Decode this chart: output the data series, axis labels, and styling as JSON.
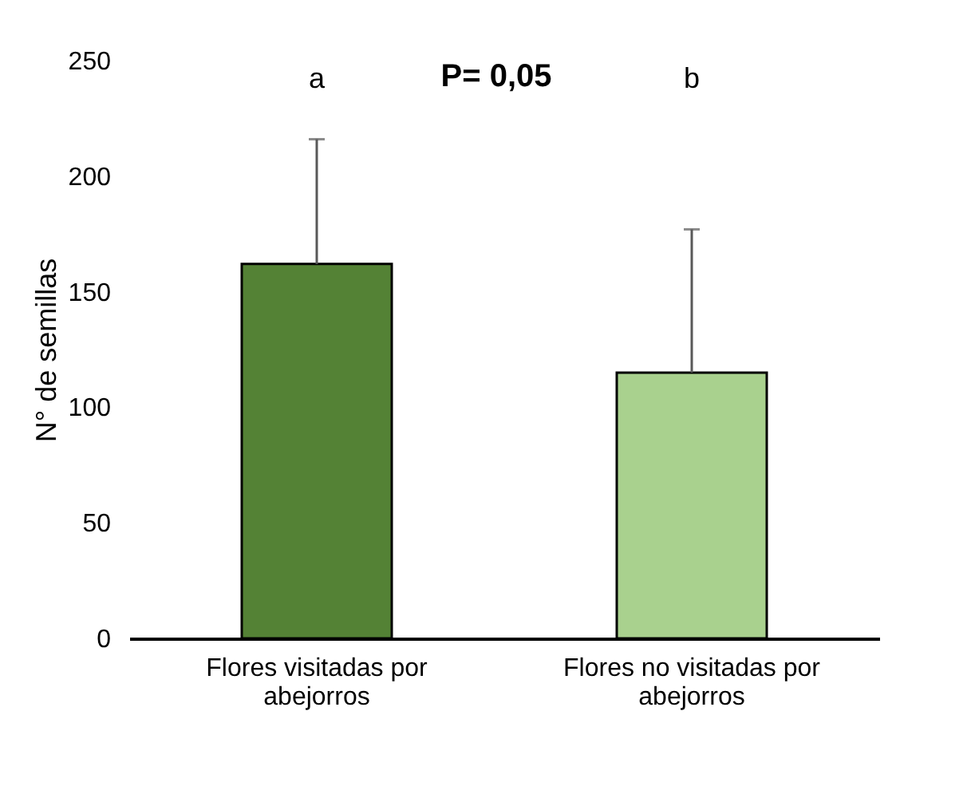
{
  "chart_data": {
    "type": "bar",
    "ylabel": "N° de semillas",
    "categories": [
      "Flores visitadas por abejorros",
      "Flores no visitadas por abejorros"
    ],
    "values": [
      162,
      115
    ],
    "colors": [
      "#548235",
      "#a9d18e"
    ],
    "errors": [
      [
        162,
        216
      ],
      [
        115,
        177
      ]
    ],
    "ylim": [
      0,
      250
    ],
    "yticks": [
      0,
      50,
      100,
      150,
      200,
      250
    ],
    "grid": false,
    "annotations": [
      "a",
      "b",
      "P= 0,05"
    ]
  }
}
